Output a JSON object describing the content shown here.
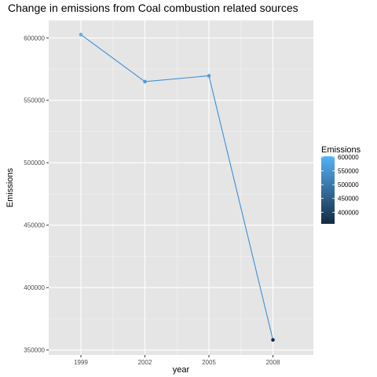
{
  "chart_data": {
    "type": "line",
    "title": "Change in emissions from Coal combustion related sources",
    "xlabel": "year",
    "ylabel": "Emissions",
    "x": [
      "1999",
      "2002",
      "2005",
      "2008"
    ],
    "series": [
      {
        "values": [
          602624,
          564940,
          569654,
          358084
        ]
      }
    ],
    "xlim": [
      "1999",
      "2008"
    ],
    "ylim": [
      346000,
      614000
    ],
    "yticks": [
      350000,
      400000,
      450000,
      500000,
      550000,
      600000
    ],
    "ytick_labels": [
      "350000",
      "400000",
      "450000",
      "500000",
      "550000",
      "600000"
    ],
    "grid": true,
    "line_color": "#3d8fd8",
    "panel_background": "#e5e5e5",
    "legend": {
      "title": "Emissions",
      "placement": "right",
      "ticks": [
        400000,
        450000,
        500000,
        550000,
        600000
      ],
      "tick_labels": [
        "400000",
        "450000",
        "500000",
        "550000",
        "600000"
      ],
      "range": [
        358084,
        602624
      ],
      "low_color": "#132b43",
      "high_color": "#56b1f7"
    }
  }
}
